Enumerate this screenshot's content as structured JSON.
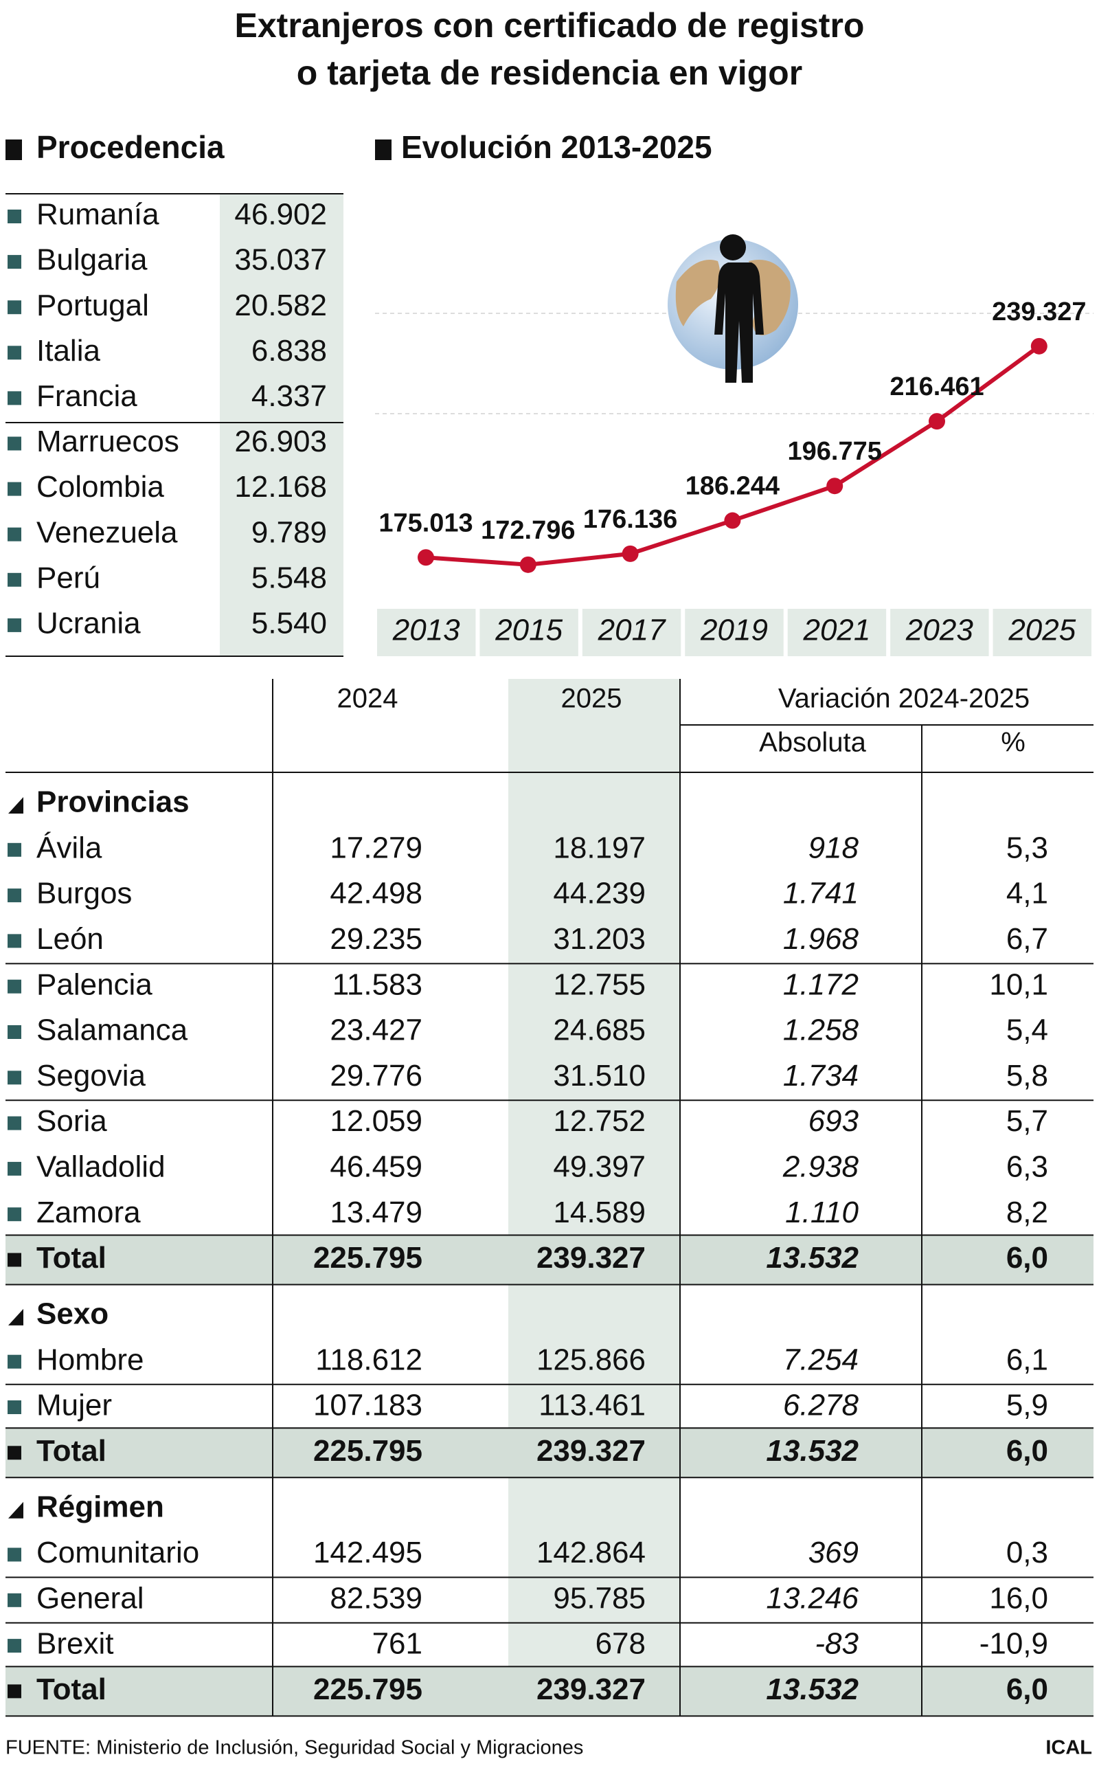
{
  "title": [
    "Extranjeros con certificado de registro",
    "o tarjeta de residencia en vigor"
  ],
  "procedencia": {
    "heading": "Procedencia",
    "rows": [
      {
        "name": "Rumanía",
        "value": "46.902"
      },
      {
        "name": "Bulgaria",
        "value": "35.037"
      },
      {
        "name": "Portugal",
        "value": "20.582"
      },
      {
        "name": "Italia",
        "value": "6.838"
      },
      {
        "name": "Francia",
        "value": "4.337"
      },
      {
        "name": "Marruecos",
        "value": "26.903"
      },
      {
        "name": "Colombia",
        "value": "12.168"
      },
      {
        "name": "Venezuela",
        "value": "9.789"
      },
      {
        "name": "Perú",
        "value": "5.548"
      },
      {
        "name": "Ucrania",
        "value": "5.540"
      }
    ]
  },
  "chart_data": {
    "type": "line",
    "title": "Evolución 2013-2025",
    "categories": [
      "2013",
      "2015",
      "2017",
      "2019",
      "2021",
      "2023",
      "2025"
    ],
    "values": [
      175013,
      172796,
      176136,
      186244,
      196775,
      216461,
      239327
    ],
    "value_labels": [
      "175.013",
      "172.796",
      "176.136",
      "186.244",
      "196.775",
      "216.461",
      "239.327"
    ],
    "color": "#c8102e",
    "ylim": [
      160000,
      260000
    ]
  },
  "table": {
    "header": {
      "col_2024": "2024",
      "col_2025": "2025",
      "variation": "Variación 2024-2025",
      "absolute": "Absoluta",
      "percent": "%"
    },
    "sections": [
      {
        "title": "Provincias",
        "rows": [
          [
            "Ávila",
            "17.279",
            "18.197",
            "918",
            "5,3"
          ],
          [
            "Burgos",
            "42.498",
            "44.239",
            "1.741",
            "4,1"
          ],
          [
            "León",
            "29.235",
            "31.203",
            "1.968",
            "6,7"
          ],
          [
            "Palencia",
            "11.583",
            "12.755",
            "1.172",
            "10,1"
          ],
          [
            "Salamanca",
            "23.427",
            "24.685",
            "1.258",
            "5,4"
          ],
          [
            "Segovia",
            "29.776",
            "31.510",
            "1.734",
            "5,8"
          ],
          [
            "Soria",
            "12.059",
            "12.752",
            "693",
            "5,7"
          ],
          [
            "Valladolid",
            "46.459",
            "49.397",
            "2.938",
            "6,3"
          ],
          [
            "Zamora",
            "13.479",
            "14.589",
            "1.110",
            "8,2"
          ]
        ],
        "total": [
          "Total",
          "225.795",
          "239.327",
          "13.532",
          "6,0"
        ]
      },
      {
        "title": "Sexo",
        "rows": [
          [
            "Hombre",
            "118.612",
            "125.866",
            "7.254",
            "6,1"
          ],
          [
            "Mujer",
            "107.183",
            "113.461",
            "6.278",
            "5,9"
          ]
        ],
        "total": [
          "Total",
          "225.795",
          "239.327",
          "13.532",
          "6,0"
        ]
      },
      {
        "title": "Régimen",
        "rows": [
          [
            "Comunitario",
            "142.495",
            "142.864",
            "369",
            "0,3"
          ],
          [
            "General",
            "82.539",
            "95.785",
            "13.246",
            "16,0"
          ],
          [
            "Brexit",
            "761",
            "678",
            "-83",
            "-10,9"
          ]
        ],
        "total": [
          "Total",
          "225.795",
          "239.327",
          "13.532",
          "6,0"
        ]
      }
    ]
  },
  "source": "FUENTE: Ministerio de Inclusión, Seguridad Social y Migraciones",
  "credit": "ICAL"
}
